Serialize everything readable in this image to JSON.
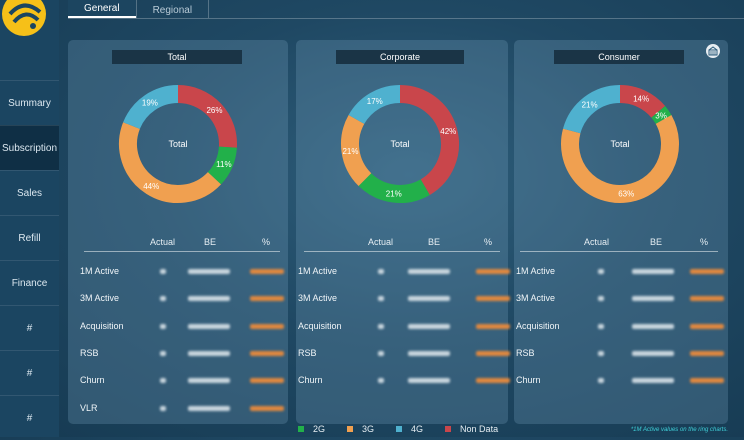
{
  "nav": {
    "items": [
      {
        "label": "Summary"
      },
      {
        "label": "Subscription"
      },
      {
        "label": "Sales"
      },
      {
        "label": "Refill"
      },
      {
        "label": "Finance"
      },
      {
        "label": "#"
      },
      {
        "label": "#"
      },
      {
        "label": "#"
      }
    ],
    "active_index": 1
  },
  "tabs": [
    {
      "label": "General",
      "active": true
    },
    {
      "label": "Regional",
      "active": false
    }
  ],
  "table_header": {
    "actual": "Actual",
    "be": "BE",
    "pct": "%"
  },
  "panels": [
    {
      "title": "Total",
      "center_label": "Total",
      "rows": [
        "1M Active",
        "3M Active",
        "Acquisition",
        "RSB",
        "Churn",
        "VLR"
      ],
      "segments": [
        {
          "name": "2G",
          "value": 11,
          "label": "11%"
        },
        {
          "name": "3G",
          "value": 44,
          "label": "44%"
        },
        {
          "name": "4G",
          "value": 19,
          "label": "19%"
        },
        {
          "name": "Non Data",
          "value": 26,
          "label": "26%"
        }
      ]
    },
    {
      "title": "Corporate",
      "center_label": "Total",
      "rows": [
        "1M Active",
        "3M Active",
        "Acquisition",
        "RSB",
        "Churn"
      ],
      "segments": [
        {
          "name": "2G",
          "value": 21,
          "label": "21%"
        },
        {
          "name": "3G",
          "value": 21,
          "label": "21%"
        },
        {
          "name": "4G",
          "value": 17,
          "label": "17%"
        },
        {
          "name": "Non Data",
          "value": 42,
          "label": "42%"
        }
      ]
    },
    {
      "title": "Consumer",
      "center_label": "Total",
      "rows": [
        "1M Active",
        "3M Active",
        "Acquisition",
        "RSB",
        "Churn"
      ],
      "segments": [
        {
          "name": "2G",
          "value": 3,
          "label": "3%"
        },
        {
          "name": "3G",
          "value": 63,
          "label": "63%"
        },
        {
          "name": "4G",
          "value": 21,
          "label": "21%"
        },
        {
          "name": "Non Data",
          "value": 14,
          "label": "14%"
        }
      ]
    }
  ],
  "legend": [
    {
      "label": "2G",
      "color": "#22b04a"
    },
    {
      "label": "3G",
      "color": "#f0a050"
    },
    {
      "label": "4G",
      "color": "#4fb1cf"
    },
    {
      "label": "Non Data",
      "color": "#c9464b"
    }
  ],
  "footnote": "*1M Active values on the ring charts.",
  "icons": {
    "export": "building-export-icon",
    "logo": "brand-logo-icon"
  }
}
